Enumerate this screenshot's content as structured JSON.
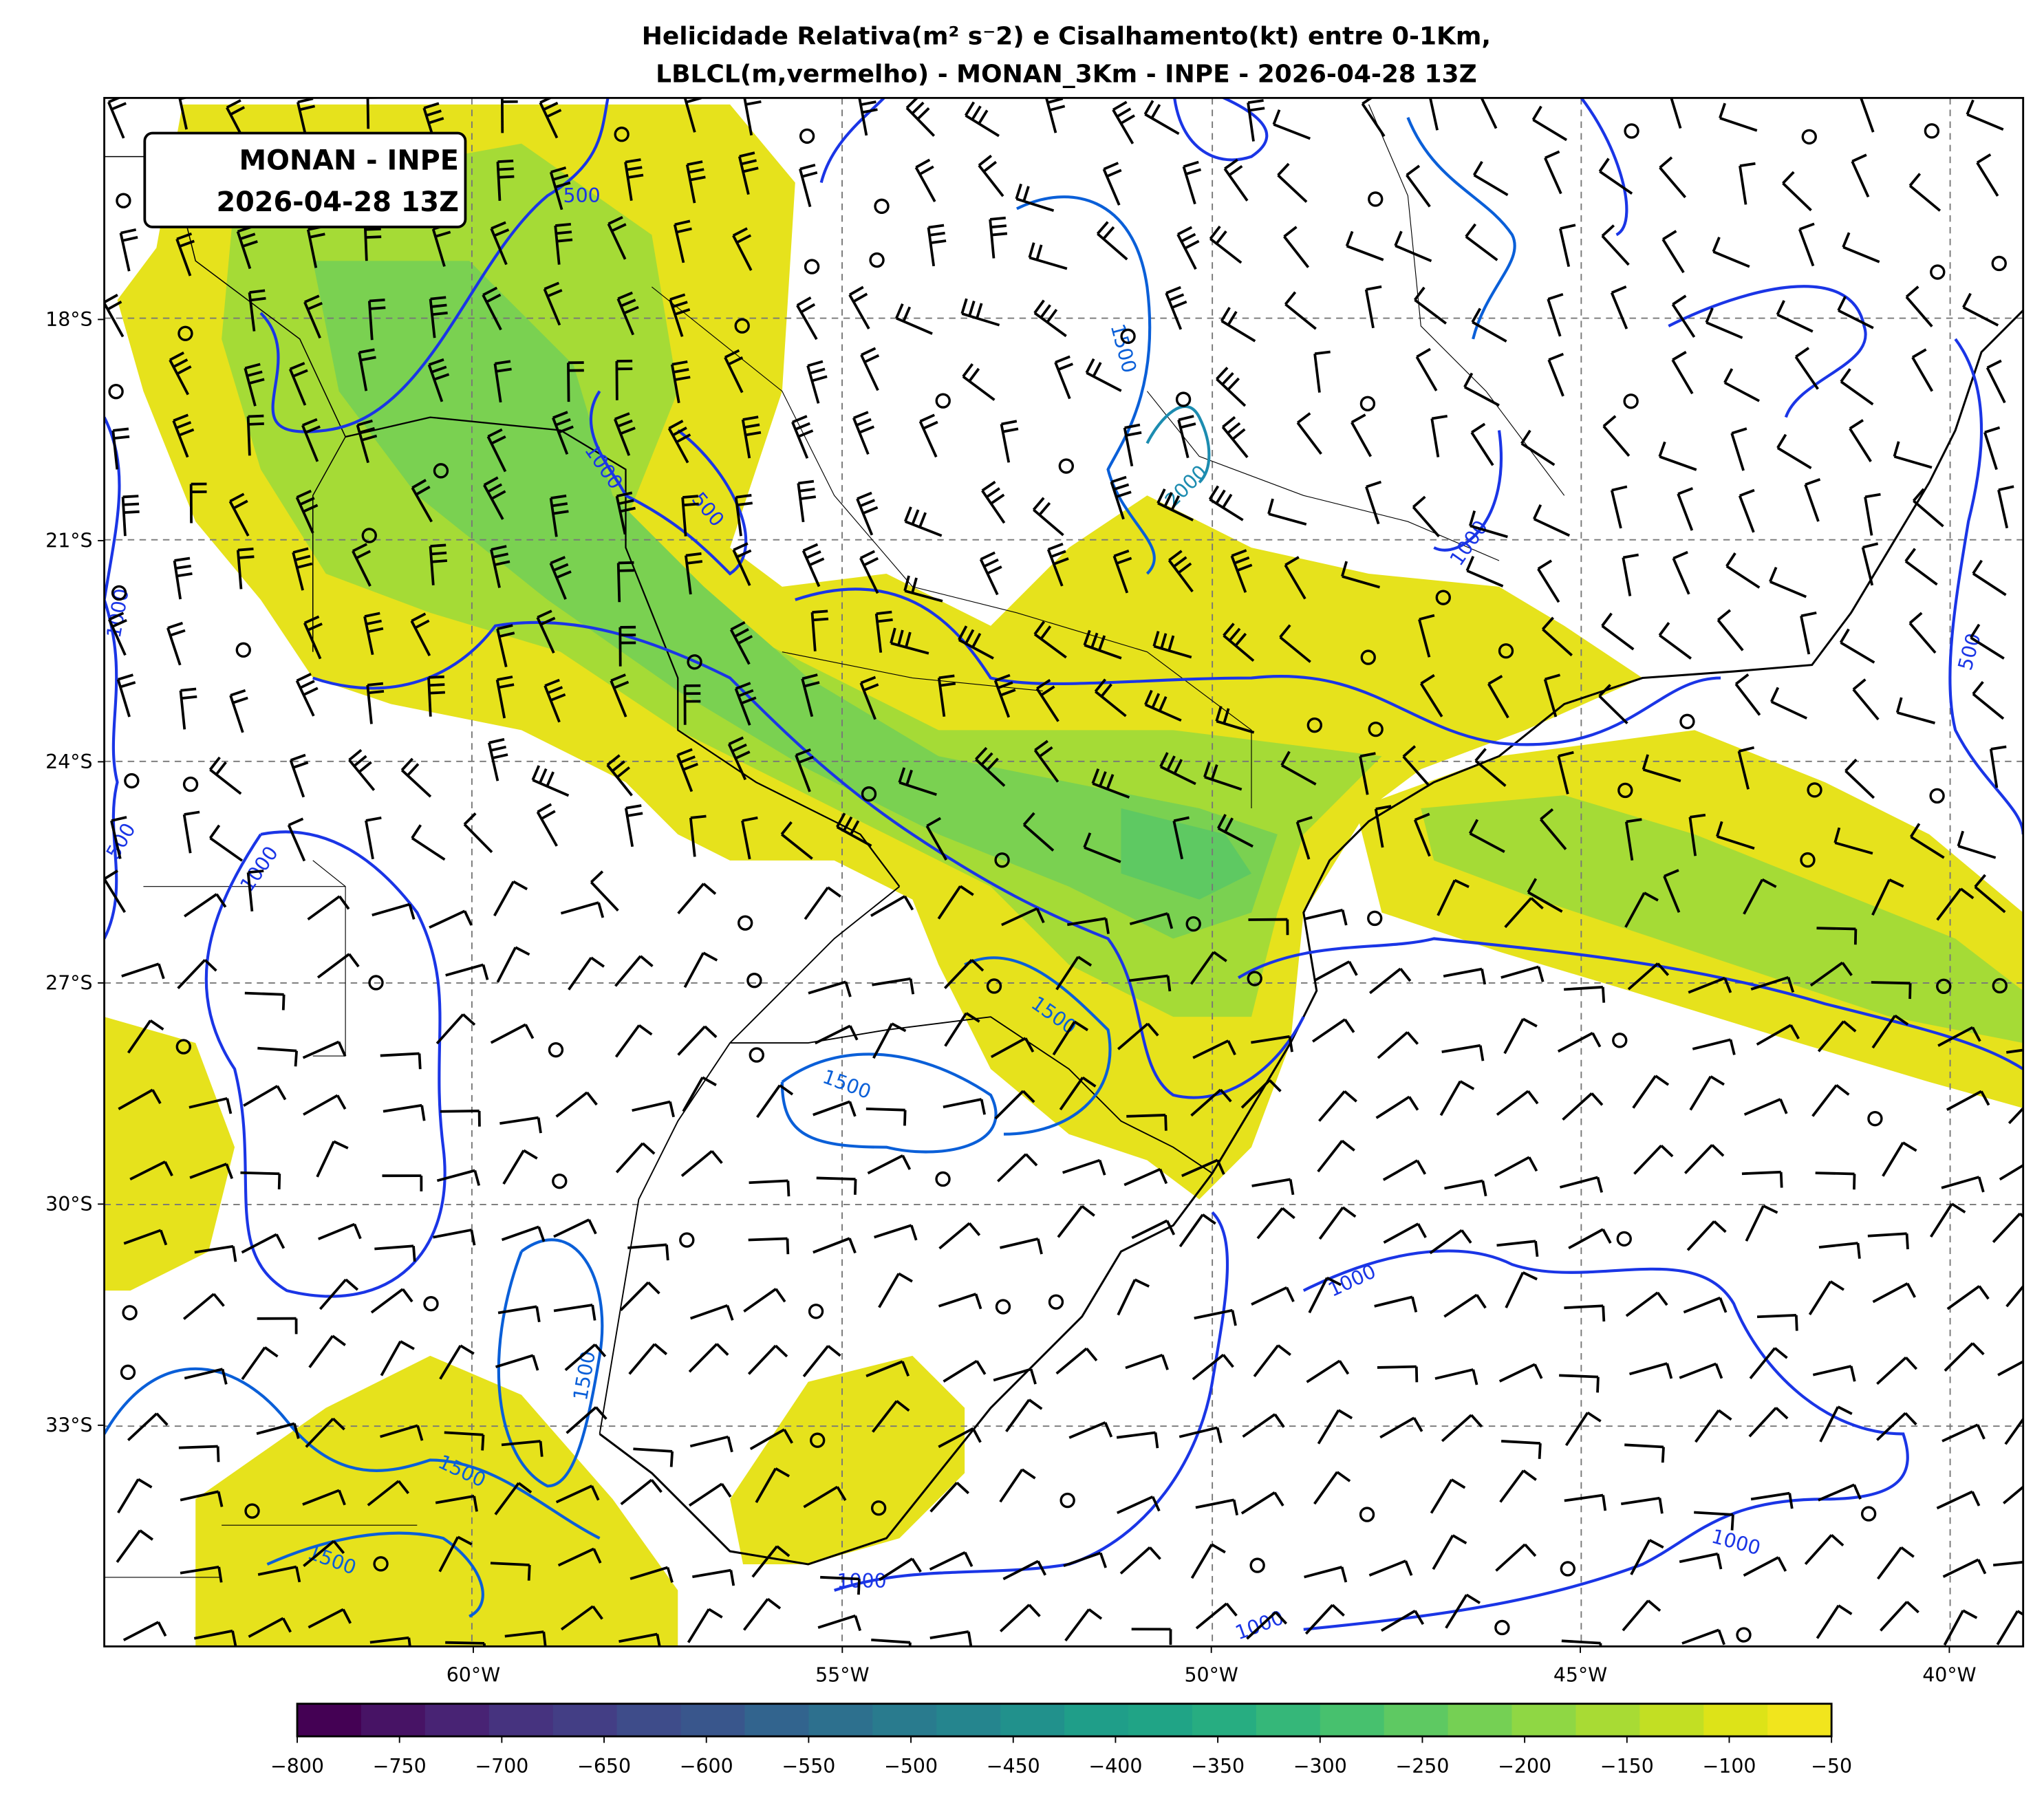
{
  "chart_data": {
    "type": "heatmap",
    "title_line1": "Helicidade Relativa(m² s⁻2) e Cisalhamento(kt) entre 0-1Km,",
    "title_line2": "LBLCL(m,vermelho) - MONAN_3Km - INPE - 2026-04-28 13Z",
    "annotation_box": [
      "MONAN - INPE",
      "2026-04-28 13Z"
    ],
    "map": {
      "lon_range": [
        -65,
        -39
      ],
      "lat_range": [
        -36,
        -14.5
      ],
      "gridlines": true,
      "x_ticks": [
        "60°W",
        "55°W",
        "50°W",
        "45°W",
        "40°W"
      ],
      "x_tick_values": [
        -60,
        -55,
        -50,
        -45,
        -40
      ],
      "y_ticks": [
        "18°S",
        "21°S",
        "24°S",
        "27°S",
        "30°S",
        "33°S"
      ],
      "y_tick_values": [
        -18,
        -21,
        -24,
        -27,
        -30,
        -33
      ]
    },
    "shading": {
      "variable": "Helicidade Relativa",
      "colormap": "viridis",
      "levels_min": -800,
      "levels_max": -50,
      "colorbar_ticks": [
        "−800",
        "−750",
        "−700",
        "−650",
        "−600",
        "−550",
        "−500",
        "−450",
        "−400",
        "−350",
        "−300",
        "−250",
        "−200",
        "−150",
        "−100",
        "−50"
      ],
      "colorbar_colors": [
        "#440154",
        "#471365",
        "#482374",
        "#46337f",
        "#433e85",
        "#3e4c8a",
        "#39568c",
        "#32648e",
        "#2d708e",
        "#297b8e",
        "#25858e",
        "#21918c",
        "#1f9e89",
        "#20a486",
        "#27ad81",
        "#35b779",
        "#47c16e",
        "#5ec962",
        "#75d054",
        "#8fd744",
        "#a8db34",
        "#c2df23",
        "#dde318",
        "#f1e51d"
      ]
    },
    "contours": {
      "variable": "LBLCL",
      "color": "#0a2ee6",
      "labels": [
        "500",
        "1000",
        "500",
        "1500",
        "2000",
        "1000",
        "1000",
        "500",
        "1000",
        "500",
        "1500",
        "1500",
        "1500",
        "1500",
        "1500",
        "1000",
        "1000",
        "1000",
        "1000"
      ]
    },
    "wind_barbs": {
      "variable": "Cisalhamento",
      "units": "kt",
      "color": "#000000"
    }
  }
}
